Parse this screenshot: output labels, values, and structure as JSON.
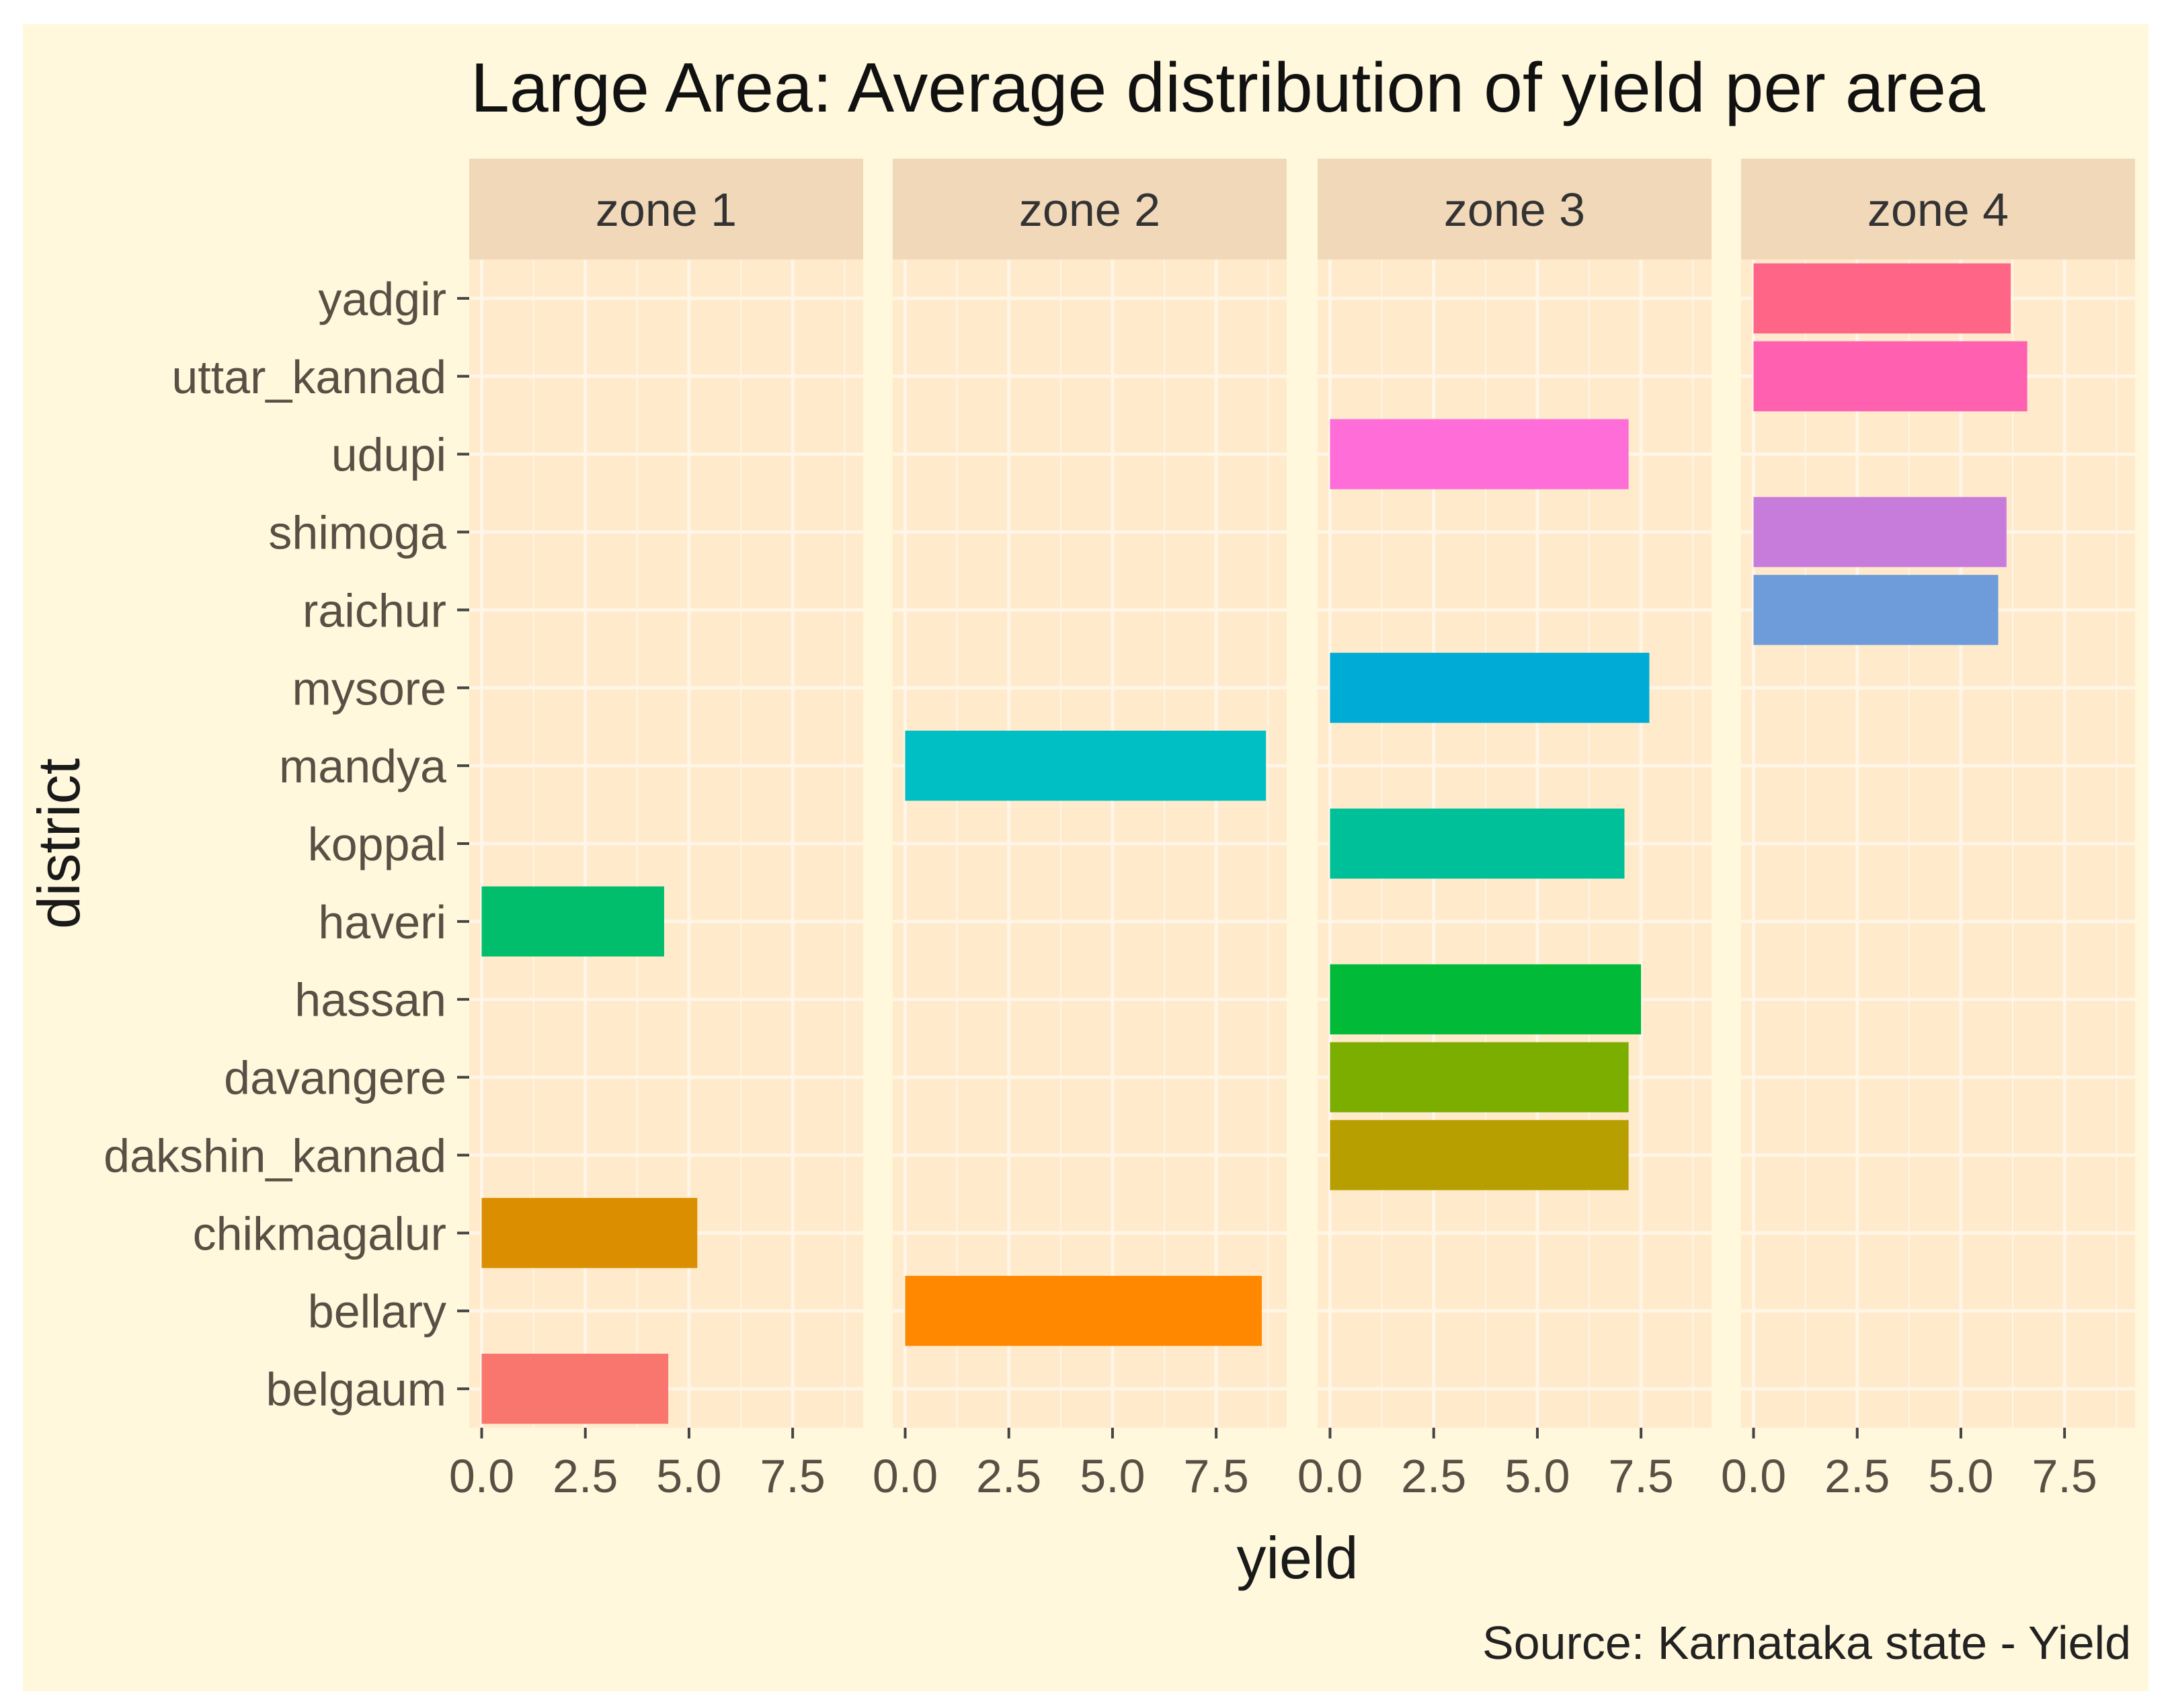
{
  "chart_data": {
    "type": "bar",
    "orientation": "horizontal",
    "facet": "zone",
    "title": "Large Area: Average distribution of yield per area",
    "xlabel": "yield",
    "ylabel": "district",
    "caption": "Source: Karnataka state - Yield",
    "xlim": [
      -0.3,
      9.2
    ],
    "x_ticks": [
      "0.0",
      "2.5",
      "5.0",
      "7.5"
    ],
    "x_tick_values": [
      0,
      2.5,
      5,
      7.5
    ],
    "categories": [
      "yadgir",
      "uttar_kannad",
      "udupi",
      "shimoga",
      "raichur",
      "mysore",
      "mandya",
      "koppal",
      "haveri",
      "hassan",
      "davangere",
      "dakshin_kannad",
      "chikmagalur",
      "bellary",
      "belgaum"
    ],
    "panels": [
      {
        "name": "zone 1",
        "bars": [
          {
            "district": "haveri",
            "value": 4.4,
            "color": "#00BE6C"
          },
          {
            "district": "chikmagalur",
            "value": 5.2,
            "color": "#DB8E00"
          },
          {
            "district": "belgaum",
            "value": 4.5,
            "color": "#F8766D"
          }
        ]
      },
      {
        "name": "zone 2",
        "bars": [
          {
            "district": "mandya",
            "value": 8.7,
            "color": "#00BFC4"
          },
          {
            "district": "bellary",
            "value": 8.6,
            "color": "#FF8800"
          }
        ]
      },
      {
        "name": "zone 3",
        "bars": [
          {
            "district": "udupi",
            "value": 7.2,
            "color": "#FF6DD9"
          },
          {
            "district": "mysore",
            "value": 7.7,
            "color": "#00ABD6"
          },
          {
            "district": "koppal",
            "value": 7.1,
            "color": "#00C09A"
          },
          {
            "district": "hassan",
            "value": 7.5,
            "color": "#00BA38"
          },
          {
            "district": "davangere",
            "value": 7.2,
            "color": "#7CAE00"
          },
          {
            "district": "dakshin_kannad",
            "value": 7.2,
            "color": "#B79F00"
          }
        ]
      },
      {
        "name": "zone 4",
        "bars": [
          {
            "district": "yadgir",
            "value": 6.2,
            "color": "#FF6587"
          },
          {
            "district": "uttar_kannad",
            "value": 6.6,
            "color": "#FF61B0"
          },
          {
            "district": "shimoga",
            "value": 6.1,
            "color": "#C77CDC"
          },
          {
            "district": "raichur",
            "value": 5.9,
            "color": "#6E9BDA"
          }
        ]
      }
    ],
    "colors": {
      "outer_background": "#FFF8DC",
      "panel_background": "#FFEACC",
      "strip_background": "#F0D8B8",
      "grid": "#FFF6E8"
    }
  }
}
